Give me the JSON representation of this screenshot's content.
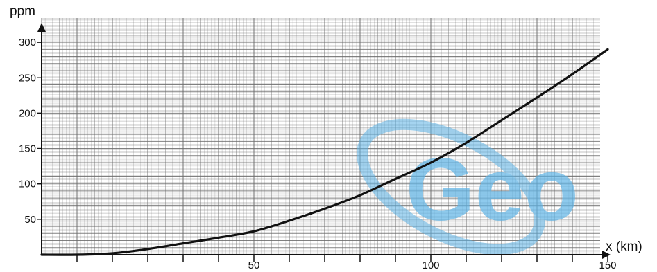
{
  "chart_data": {
    "type": "line",
    "title": "",
    "xlabel": "x (km)",
    "ylabel": "ppm",
    "xlim": [
      -10,
      150
    ],
    "ylim": [
      0,
      300
    ],
    "x_ticks": [
      50,
      100,
      150
    ],
    "y_ticks": [
      50,
      100,
      150,
      200,
      250,
      300
    ],
    "grid": true,
    "series": [
      {
        "color": "#111111",
        "x": [
          -10,
          0,
          10,
          20,
          30,
          40,
          50,
          60,
          70,
          80,
          90,
          100,
          110,
          120,
          130,
          140,
          150
        ],
        "y": [
          0,
          0,
          2,
          8,
          16,
          24,
          33,
          48,
          65,
          84,
          107,
          130,
          158,
          190,
          222,
          255,
          290
        ]
      }
    ]
  },
  "watermark": {
    "text": "Geo",
    "color": "#5fb4e6"
  },
  "colors": {
    "grid": "#6b6b6b",
    "axis": "#111111"
  }
}
